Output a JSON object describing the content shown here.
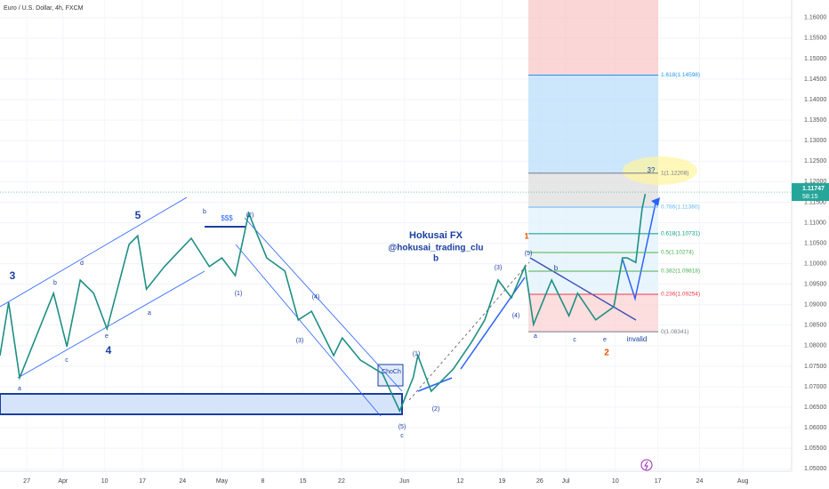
{
  "chart_data": {
    "type": "line",
    "title": "Euro / U.S. Dollar, 4h, FXCM",
    "color": "#1f8f83",
    "x": [
      -3.4,
      -2.3,
      -0.9,
      3.4,
      5.1,
      6.8,
      8.5,
      10.2,
      13.0,
      14.1,
      15.2,
      17.5,
      20.9,
      23.2,
      24.8,
      26.5,
      28.2,
      30.5,
      32.8,
      34.5,
      36.2,
      39.0,
      40.1,
      42.4,
      45.2,
      47.4,
      49.1,
      49.7,
      51.4,
      54.2,
      56.5,
      58.2,
      59.9,
      61.6,
      63.3,
      64.4,
      66.7,
      68.9,
      70.0,
      72.3,
      74.6,
      75.7,
      76.3,
      77.4,
      78.2,
      78.6
    ],
    "values": [
      1.0776,
      1.0906,
      1.0722,
      1.0928,
      1.0798,
      1.096,
      1.0928,
      1.0841,
      1.1047,
      1.1068,
      1.0938,
      1.0993,
      1.1062,
      1.0993,
      1.1014,
      1.0971,
      1.1123,
      1.1014,
      1.0982,
      1.0863,
      1.0884,
      1.0776,
      1.0819,
      1.0765,
      1.0732,
      1.0641,
      1.0722,
      1.0776,
      1.0689,
      1.0743,
      1.0808,
      1.0863,
      1.096,
      1.0917,
      1.0993,
      1.0852,
      1.096,
      1.0873,
      1.0928,
      1.0863,
      1.0895,
      1.1014,
      1.1014,
      1.1003,
      1.1134,
      1.117
    ],
    "xlim": [
      -3.4,
      97.2
    ],
    "xticks": [
      {
        "value": 0,
        "label": "27"
      },
      {
        "value": 4.6,
        "label": "Apr"
      },
      {
        "value": 9.9,
        "label": "10"
      },
      {
        "value": 14.7,
        "label": "17"
      },
      {
        "value": 19.8,
        "label": "24"
      },
      {
        "value": 24.8,
        "label": "May"
      },
      {
        "value": 30,
        "label": "8"
      },
      {
        "value": 35.1,
        "label": "15"
      },
      {
        "value": 40,
        "label": "22"
      },
      {
        "value": 48,
        "label": "Jun"
      },
      {
        "value": 55.1,
        "label": "12"
      },
      {
        "value": 60.4,
        "label": "19"
      },
      {
        "value": 65.2,
        "label": "26"
      },
      {
        "value": 68.5,
        "label": "Jul"
      },
      {
        "value": 74.8,
        "label": "10"
      },
      {
        "value": 80.2,
        "label": "17"
      },
      {
        "value": 85.5,
        "label": "24"
      },
      {
        "value": 91,
        "label": "Aug"
      }
    ],
    "ylim": [
      1.0494,
      1.1643
    ],
    "yticks": [
      {
        "value": 1.05,
        "label": "1.05000"
      },
      {
        "value": 1.055,
        "label": "1.05500"
      },
      {
        "value": 1.06,
        "label": "1.06000"
      },
      {
        "value": 1.065,
        "label": "1.06500"
      },
      {
        "value": 1.07,
        "label": "1.07000"
      },
      {
        "value": 1.075,
        "label": "1.07500"
      },
      {
        "value": 1.08,
        "label": "1.08000"
      },
      {
        "value": 1.085,
        "label": "1.08500"
      },
      {
        "value": 1.09,
        "label": "1.09000"
      },
      {
        "value": 1.095,
        "label": "1.09500"
      },
      {
        "value": 1.1,
        "label": "1.10000"
      },
      {
        "value": 1.105,
        "label": "1.10500"
      },
      {
        "value": 1.11,
        "label": "1.11000"
      },
      {
        "value": 1.115,
        "label": "1.11500"
      },
      {
        "value": 1.12,
        "label": "1.12000"
      },
      {
        "value": 1.125,
        "label": "1.12500"
      },
      {
        "value": 1.13,
        "label": "1.13000"
      },
      {
        "value": 1.135,
        "label": "1.13500"
      },
      {
        "value": 1.14,
        "label": "1.14000"
      },
      {
        "value": 1.145,
        "label": "1.14500"
      },
      {
        "value": 1.15,
        "label": "1.15000"
      },
      {
        "value": 1.155,
        "label": "1.15500"
      },
      {
        "value": 1.16,
        "label": "1.16000"
      }
    ],
    "last_price": {
      "value": 1.11747,
      "label": "1.11747"
    },
    "countdown": "58:15",
    "fib_levels": [
      {
        "value": 1.08341,
        "label": "0(1.08341)",
        "color": "#787b86"
      },
      {
        "value": 1.09254,
        "label": "0.236(1.09254)",
        "color": "#f23645"
      },
      {
        "value": 1.09818,
        "label": "0.382(1.09818)",
        "color": "#4caf50"
      },
      {
        "value": 1.10274,
        "label": "0.5(1.10274)",
        "color": "#4caf50"
      },
      {
        "value": 1.10731,
        "label": "0.618(1.10731)",
        "color": "#089981"
      },
      {
        "value": 1.1138,
        "label": "0.786(1.11380)",
        "color": "#64b5f6"
      },
      {
        "value": 1.12208,
        "label": "1(1.12208)",
        "color": "#787b86"
      },
      {
        "value": 1.14598,
        "label": "1.618(1.14598)",
        "color": "#2196f3"
      }
    ],
    "annotations": [
      "Hokusai FX",
      "@hokusai_trading_clu",
      "b",
      "3",
      "5",
      "4",
      "a",
      "b",
      "c",
      "d",
      "e",
      "a",
      "b",
      "$$$",
      "(2)",
      "(1)",
      "(4)",
      "(3)",
      "ChoCh",
      "(5)",
      "c",
      "(1)",
      "(2)",
      "(3)",
      "(4)",
      "(5)",
      "1",
      "b",
      "a",
      "c",
      "e",
      "invalid",
      "2",
      "3?"
    ]
  }
}
